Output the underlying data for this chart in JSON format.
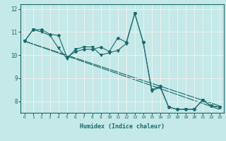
{
  "title": "",
  "xlabel": "Humidex (Indice chaleur)",
  "bg_color": "#c5e8e8",
  "grid_color": "#f0f0f0",
  "line_color": "#1a6b6b",
  "xlim": [
    -0.5,
    23.5
  ],
  "ylim": [
    7.5,
    12.2
  ],
  "yticks": [
    8,
    9,
    10,
    11,
    12
  ],
  "xticks": [
    0,
    1,
    2,
    3,
    4,
    5,
    6,
    7,
    8,
    9,
    10,
    11,
    12,
    13,
    14,
    15,
    16,
    17,
    18,
    19,
    20,
    21,
    22,
    23
  ],
  "series1": [
    10.6,
    11.1,
    11.1,
    10.9,
    10.85,
    9.9,
    10.15,
    10.25,
    10.25,
    10.35,
    10.15,
    10.75,
    10.55,
    11.8,
    10.55,
    8.5,
    8.65,
    7.75,
    7.65,
    7.65,
    7.65,
    8.05,
    7.8,
    7.75
  ],
  "series2": [
    10.6,
    11.1,
    11.0,
    10.85,
    10.3,
    9.85,
    10.25,
    10.35,
    10.35,
    10.0,
    10.1,
    10.2,
    10.5,
    11.8,
    10.55,
    8.45,
    8.6,
    7.75,
    7.65,
    7.65,
    7.65,
    8.05,
    7.8,
    7.75
  ],
  "trend1_x": [
    0,
    23
  ],
  "trend1_y": [
    10.6,
    7.8
  ],
  "trend2_x": [
    0,
    23
  ],
  "trend2_y": [
    10.6,
    7.65
  ]
}
